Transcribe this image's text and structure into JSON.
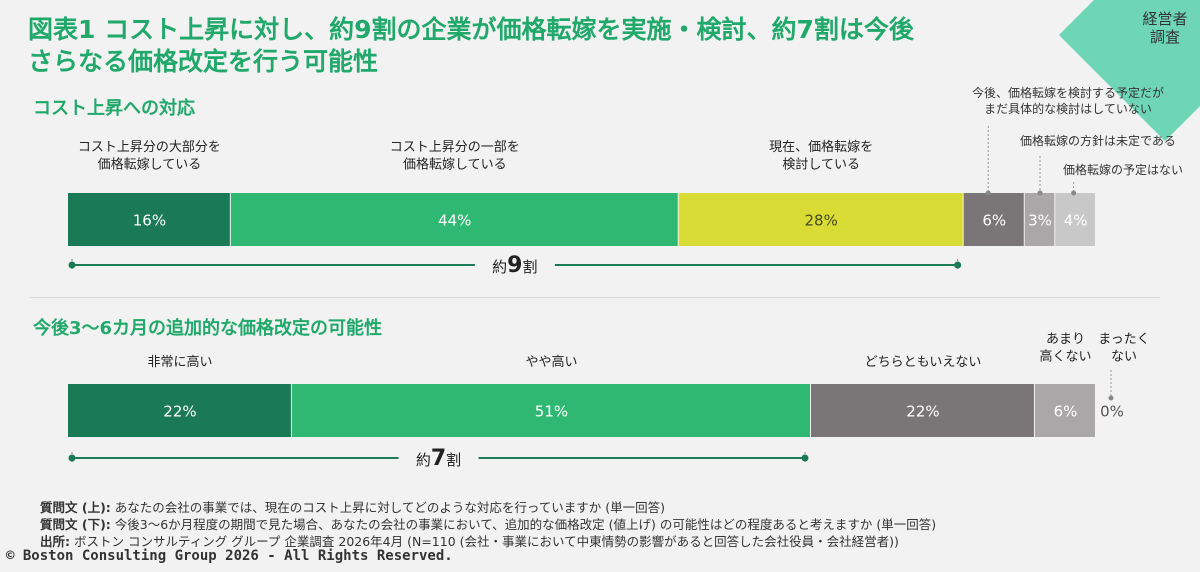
{
  "corner_label": "経営者\n調査",
  "title": "図表1  コスト上昇に対し、約9割の企業が価格転嫁を実施・検討、約7割は今後\nさらなる価格改定を行う可能性",
  "chart_data": [
    {
      "type": "bar",
      "orientation": "horizontal-stacked-100",
      "title": "コスト上昇への対応",
      "categories": [
        "コスト上昇分の大部分を価格転嫁している",
        "コスト上昇分の一部を価格転嫁している",
        "現在、価格転嫁を検討している",
        "今後、価格転嫁を検討する予定だがまだ具体的な検討はしていない",
        "価格転嫁の方針は未定である",
        "価格転嫁の予定はない"
      ],
      "category_display": [
        "コスト上昇分の大部分を\n価格転嫁している",
        "コスト上昇分の一部を\n価格転嫁している",
        "現在、価格転嫁を\n検討している",
        "今後、価格転嫁を検討する予定だが\nまだ具体的な検討はしていない",
        "価格転嫁の方針は未定である",
        "価格転嫁の予定はない"
      ],
      "values": [
        16,
        44,
        28,
        6,
        3,
        4
      ],
      "value_labels": [
        "16%",
        "44%",
        "28%",
        "6%",
        "3%",
        "4%"
      ],
      "colors": [
        "#1a7a56",
        "#2eb872",
        "#d8dc34",
        "#7a7678",
        "#a9a7a8",
        "#c8c8c8"
      ],
      "bracket": {
        "label_prefix": "約",
        "label_num": "9",
        "label_suffix": "割",
        "span": [
          0,
          2
        ]
      }
    },
    {
      "type": "bar",
      "orientation": "horizontal-stacked-100",
      "title": "今後3～6カ月の追加的な価格改定の可能性",
      "categories": [
        "非常に高い",
        "やや高い",
        "どちらともいえない",
        "あまり高くない",
        "まったくない"
      ],
      "category_display": [
        "非常に高い",
        "やや高い",
        "どちらともいえない",
        "あまり\n高くない",
        "まったく\nない"
      ],
      "values": [
        22,
        51,
        22,
        6,
        0
      ],
      "value_labels": [
        "22%",
        "51%",
        "22%",
        "6%",
        "0%"
      ],
      "colors": [
        "#1a7a56",
        "#2eb872",
        "#7a7678",
        "#a9a7a8",
        "#c8c8c8"
      ],
      "bracket": {
        "label_prefix": "約",
        "label_num": "7",
        "label_suffix": "割",
        "span": [
          0,
          1
        ]
      }
    }
  ],
  "footnotes": [
    {
      "label": "質問文 (上):",
      "text": " あなたの会社の事業では、現在のコスト上昇に対してどのような対応を行っていますか (単一回答)"
    },
    {
      "label": "質問文 (下):",
      "text": " 今後3～6か月程度の期間で見た場合、あなたの会社の事業において、追加的な価格改定 (値上げ) の可能性はどの程度あると考えますか (単一回答)"
    },
    {
      "label": "出所:",
      "text": " ボストン コンサルティング グループ 企業調査 2026年4月 (N=110 (会社・事業において中東情勢の影響があると回答した会社役員・会社経営者))"
    }
  ],
  "copyright": "© Boston Consulting Group 2026 - All Rights Reserved."
}
